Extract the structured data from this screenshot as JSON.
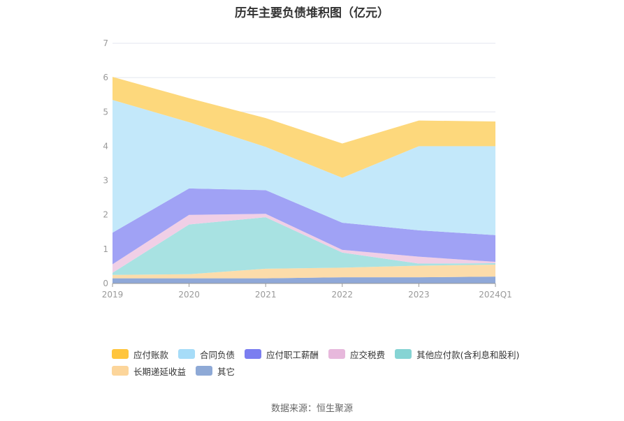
{
  "chart_data": {
    "type": "area",
    "stacked": true,
    "title": "历年主要负债堆积图（亿元）",
    "categories": [
      "2019",
      "2020",
      "2021",
      "2022",
      "2023",
      "2024Q1"
    ],
    "ylim": [
      0,
      7
    ],
    "yticks": [
      "0",
      "1",
      "2",
      "3",
      "4",
      "5",
      "6",
      "7"
    ],
    "grid": true,
    "legend_position": "bottom",
    "series": [
      {
        "name": "其它",
        "color": "#8fa8d8",
        "values": [
          0.15,
          0.15,
          0.15,
          0.18,
          0.18,
          0.2
        ]
      },
      {
        "name": "长期递延收益",
        "color": "#fcdcaa",
        "values": [
          0.1,
          0.12,
          0.28,
          0.28,
          0.34,
          0.35
        ]
      },
      {
        "name": "其他应付款(含利息和股利)",
        "color": "#a8e2e2",
        "values": [
          0.06,
          1.45,
          1.5,
          0.44,
          0.06,
          0.04
        ]
      },
      {
        "name": "应交税费",
        "color": "#f0cfe6",
        "values": [
          0.25,
          0.28,
          0.1,
          0.08,
          0.2,
          0.04
        ]
      },
      {
        "name": "应付职工薪酬",
        "color": "#a0a2f5",
        "values": [
          0.92,
          0.77,
          0.69,
          0.79,
          0.77,
          0.78
        ]
      },
      {
        "name": "合同负债",
        "color": "#c3e8fa",
        "values": [
          3.87,
          1.93,
          1.26,
          1.31,
          2.45,
          2.59
        ]
      },
      {
        "name": "应付账款",
        "color": "#fdd87c",
        "values": [
          0.67,
          0.7,
          0.84,
          1.0,
          0.75,
          0.72
        ]
      }
    ],
    "legend_order": [
      "应付账款",
      "合同负债",
      "应付职工薪酬",
      "应交税费",
      "其他应付款(含利息和股利)",
      "长期递延收益",
      "其它"
    ],
    "legend_colors": {
      "应付账款": "#ffc53d",
      "合同负债": "#a6dcf8",
      "应付职工薪酬": "#7b7ef0",
      "应交税费": "#e7b8dc",
      "其他应付款(含利息和股利)": "#86d4d4",
      "长期递延收益": "#fcd59a",
      "其它": "#8ea9d6"
    }
  },
  "source_text": "数据来源：恒生聚源"
}
